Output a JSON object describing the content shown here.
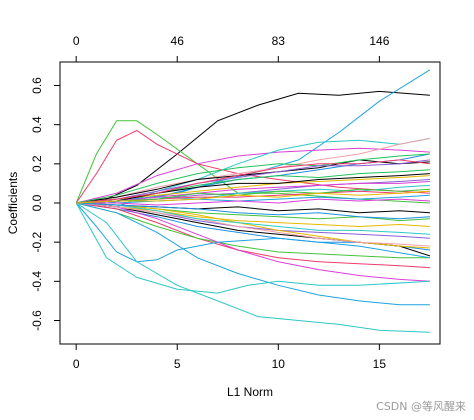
{
  "chart_data": {
    "type": "line",
    "xlabel": "L1 Norm",
    "ylabel": "Coefficients",
    "xlim": [
      -0.8,
      18.0
    ],
    "ylim": [
      -0.72,
      0.72
    ],
    "x_ticks": [
      0,
      5,
      10,
      15
    ],
    "y_ticks": [
      -0.6,
      -0.4,
      -0.2,
      0.0,
      0.2,
      0.4,
      0.6
    ],
    "y_tick_labels": [
      "-0.6",
      "-0.4",
      "-0.2",
      "0.0",
      "0.2",
      "0.4",
      "0.6"
    ],
    "top_axis": {
      "positions": [
        0,
        5,
        10,
        15
      ],
      "labels": [
        "0",
        "46",
        "83",
        "146"
      ]
    },
    "grid": false,
    "series": [
      {
        "color": "#000000",
        "x": [
          0,
          1.5,
          3,
          5,
          7,
          9,
          11,
          13,
          15,
          17.5
        ],
        "y": [
          0,
          0.02,
          0.09,
          0.25,
          0.42,
          0.5,
          0.56,
          0.55,
          0.57,
          0.55
        ]
      },
      {
        "color": "#1fa3e0",
        "x": [
          0,
          1.5,
          3,
          5,
          7,
          9,
          11,
          13,
          15,
          17.5
        ],
        "y": [
          0,
          0,
          0.02,
          0.05,
          0.11,
          0.16,
          0.22,
          0.36,
          0.52,
          0.68
        ]
      },
      {
        "color": "#44c23b",
        "x": [
          0,
          1,
          2,
          3,
          4,
          6,
          8,
          10,
          14,
          17.5
        ],
        "y": [
          0,
          0.25,
          0.42,
          0.42,
          0.35,
          0.2,
          0.05,
          0.05,
          0.02,
          0.0
        ]
      },
      {
        "color": "#ef3b6b",
        "x": [
          0,
          1,
          2,
          3,
          4,
          6,
          8,
          10,
          13,
          17.5
        ],
        "y": [
          0,
          0.15,
          0.32,
          0.37,
          0.3,
          0.2,
          0.15,
          0.12,
          0.08,
          0.05
        ]
      },
      {
        "color": "#d93fd6",
        "x": [
          0,
          2,
          4,
          6,
          8,
          10,
          12,
          14,
          16,
          17.5
        ],
        "y": [
          0,
          0.05,
          0.14,
          0.2,
          0.24,
          0.26,
          0.27,
          0.28,
          0.27,
          0.26
        ]
      },
      {
        "color": "#2ec7c7",
        "x": [
          0,
          2,
          4,
          6,
          8,
          10,
          12,
          14,
          16,
          17.5
        ],
        "y": [
          0,
          -0.02,
          0.06,
          0.12,
          0.2,
          0.27,
          0.31,
          0.32,
          0.3,
          0.33
        ]
      },
      {
        "color": "#1f8fe0",
        "x": [
          0,
          2,
          4,
          6,
          8,
          10,
          12,
          14,
          16,
          17.5
        ],
        "y": [
          0,
          0.02,
          0.03,
          0.08,
          0.12,
          0.14,
          0.17,
          0.2,
          0.22,
          0.25
        ]
      },
      {
        "color": "#f0a1a8",
        "x": [
          0,
          2,
          4,
          6,
          8,
          10,
          12,
          14,
          16,
          17.5
        ],
        "y": [
          0,
          0.03,
          0.08,
          0.12,
          0.15,
          0.18,
          0.22,
          0.25,
          0.3,
          0.33
        ]
      },
      {
        "color": "#000000",
        "x": [
          0,
          2,
          4,
          6,
          8,
          10,
          12,
          14,
          16,
          17.5
        ],
        "y": [
          0,
          0.03,
          0.07,
          0.12,
          0.14,
          0.16,
          0.18,
          0.22,
          0.2,
          0.21
        ]
      },
      {
        "color": "#22c25a",
        "x": [
          0,
          2,
          4,
          6,
          8,
          10,
          12,
          14,
          16,
          17.5
        ],
        "y": [
          0,
          0.02,
          0.05,
          0.09,
          0.12,
          0.14,
          0.13,
          0.15,
          0.16,
          0.17
        ]
      },
      {
        "color": "#e5b800",
        "x": [
          0,
          2,
          4,
          6,
          8,
          10,
          12,
          14,
          16,
          17.5
        ],
        "y": [
          0,
          0.02,
          0.04,
          0.06,
          0.08,
          0.1,
          0.11,
          0.12,
          0.13,
          0.14
        ]
      },
      {
        "color": "#8a5fd6",
        "x": [
          0,
          2,
          4,
          6,
          8,
          10,
          12,
          14,
          16,
          17.5
        ],
        "y": [
          0,
          0.01,
          0.02,
          0.04,
          0.05,
          0.07,
          0.09,
          0.1,
          0.11,
          0.12
        ]
      },
      {
        "color": "#2ec7c7",
        "x": [
          0,
          2,
          4,
          6,
          8,
          10,
          12,
          14,
          16,
          17.5
        ],
        "y": [
          0,
          0.01,
          0.03,
          0.02,
          0.05,
          0.06,
          0.07,
          0.06,
          0.08,
          0.09
        ]
      },
      {
        "color": "#ef3b6b",
        "x": [
          0,
          2,
          4,
          6,
          8,
          10,
          12,
          14,
          16,
          17.5
        ],
        "y": [
          0,
          0.01,
          0.02,
          0.03,
          0.03,
          0.04,
          0.05,
          0.06,
          0.05,
          0.06
        ]
      },
      {
        "color": "#1fa3e0",
        "x": [
          0,
          2,
          4,
          6,
          8,
          10,
          12,
          14,
          16,
          17.5
        ],
        "y": [
          0,
          0.0,
          0.01,
          0.02,
          0.01,
          0.02,
          0.03,
          0.02,
          0.03,
          0.04
        ]
      },
      {
        "color": "#d93fd6",
        "x": [
          0,
          2,
          4,
          6,
          8,
          10,
          12,
          14,
          16,
          17.5
        ],
        "y": [
          0,
          0.0,
          -0.01,
          0.0,
          0.01,
          0.0,
          0.02,
          0.01,
          0.02,
          0.01
        ]
      },
      {
        "color": "#000000",
        "x": [
          0,
          2,
          4,
          6,
          8,
          10,
          12,
          14,
          16,
          17.5
        ],
        "y": [
          0,
          -0.01,
          -0.02,
          -0.03,
          -0.02,
          -0.04,
          -0.03,
          -0.05,
          -0.04,
          -0.05
        ]
      },
      {
        "color": "#44c23b",
        "x": [
          0,
          2,
          4,
          6,
          8,
          10,
          12,
          14,
          16,
          17.5
        ],
        "y": [
          0,
          -0.01,
          -0.03,
          -0.05,
          -0.06,
          -0.07,
          -0.08,
          -0.07,
          -0.09,
          -0.08
        ]
      },
      {
        "color": "#e5b800",
        "x": [
          0,
          2,
          4,
          6,
          8,
          10,
          12,
          14,
          16,
          17.5
        ],
        "y": [
          0,
          -0.02,
          -0.04,
          -0.07,
          -0.09,
          -0.1,
          -0.11,
          -0.12,
          -0.11,
          -0.12
        ]
      },
      {
        "color": "#8a5fd6",
        "x": [
          0,
          2,
          4,
          6,
          8,
          10,
          12,
          14,
          16,
          17.5
        ],
        "y": [
          0,
          -0.02,
          -0.05,
          -0.09,
          -0.12,
          -0.14,
          -0.15,
          -0.16,
          -0.17,
          -0.18
        ]
      },
      {
        "color": "#1f8fe0",
        "x": [
          0,
          2,
          4,
          6,
          8,
          10,
          12,
          14,
          16,
          17.5
        ],
        "y": [
          0,
          -0.03,
          -0.07,
          -0.12,
          -0.15,
          -0.18,
          -0.2,
          -0.2,
          -0.22,
          -0.24
        ]
      },
      {
        "color": "#000000",
        "x": [
          0,
          2,
          4,
          6,
          8,
          10,
          12,
          14,
          16,
          17.5
        ],
        "y": [
          0,
          -0.02,
          -0.06,
          -0.1,
          -0.14,
          -0.16,
          -0.18,
          -0.2,
          -0.22,
          -0.27
        ]
      },
      {
        "color": "#ef3b6b",
        "x": [
          0,
          2,
          4,
          6,
          8,
          10,
          12,
          14,
          16,
          17.5
        ],
        "y": [
          0,
          -0.03,
          -0.1,
          -0.18,
          -0.24,
          -0.28,
          -0.3,
          -0.31,
          -0.32,
          -0.33
        ]
      },
      {
        "color": "#44c23b",
        "x": [
          0,
          2,
          4,
          6,
          8,
          10,
          12,
          14,
          16,
          17.5
        ],
        "y": [
          0,
          -0.05,
          -0.12,
          -0.18,
          -0.22,
          -0.25,
          -0.26,
          -0.27,
          -0.28,
          -0.28
        ]
      },
      {
        "color": "#d93fd6",
        "x": [
          0,
          2,
          4,
          6,
          8,
          10,
          12,
          14,
          16,
          17.5
        ],
        "y": [
          0,
          -0.02,
          -0.08,
          -0.16,
          -0.24,
          -0.3,
          -0.34,
          -0.37,
          -0.39,
          -0.4
        ]
      },
      {
        "color": "#1fa3e0",
        "x": [
          0,
          1,
          2,
          3,
          4,
          5,
          7,
          10,
          14,
          17.5
        ],
        "y": [
          0,
          -0.12,
          -0.25,
          -0.3,
          -0.29,
          -0.24,
          -0.2,
          -0.18,
          -0.22,
          -0.28
        ]
      },
      {
        "color": "#1fa3e0",
        "x": [
          0,
          2,
          4,
          6,
          8,
          10,
          12,
          14,
          16,
          17.5
        ],
        "y": [
          0,
          -0.05,
          -0.15,
          -0.28,
          -0.36,
          -0.42,
          -0.47,
          -0.5,
          -0.52,
          -0.52
        ]
      },
      {
        "color": "#2ec7c7",
        "x": [
          0,
          1.5,
          3,
          5,
          7,
          8.5,
          10,
          12,
          14,
          17.5
        ],
        "y": [
          0,
          -0.28,
          -0.38,
          -0.44,
          -0.46,
          -0.42,
          -0.4,
          -0.42,
          -0.42,
          -0.4
        ]
      },
      {
        "color": "#2ec7c7",
        "x": [
          0,
          1.5,
          3,
          5,
          7,
          9,
          11,
          13,
          15,
          17.5
        ],
        "y": [
          0,
          -0.1,
          -0.3,
          -0.42,
          -0.5,
          -0.58,
          -0.6,
          -0.62,
          -0.65,
          -0.66
        ]
      },
      {
        "color": "#e5b800",
        "x": [
          0,
          2,
          4,
          6,
          8,
          10,
          12,
          14,
          16,
          17.5
        ],
        "y": [
          0,
          -0.01,
          -0.03,
          -0.06,
          -0.1,
          -0.14,
          -0.17,
          -0.2,
          -0.22,
          -0.23
        ]
      },
      {
        "color": "#22c25a",
        "x": [
          0,
          2,
          4,
          6,
          8,
          10,
          12,
          14,
          16,
          17.5
        ],
        "y": [
          0,
          0.04,
          0.1,
          0.15,
          0.18,
          0.2,
          0.19,
          0.22,
          0.24,
          0.25
        ]
      },
      {
        "color": "#8a5fd6",
        "x": [
          0,
          2,
          4,
          6,
          8,
          10,
          12,
          14,
          16,
          17.5
        ],
        "y": [
          0,
          0.02,
          0.06,
          0.1,
          0.13,
          0.16,
          0.19,
          0.19,
          0.2,
          0.22
        ]
      },
      {
        "color": "#f0a1a8",
        "x": [
          0,
          2,
          4,
          6,
          8,
          10,
          12,
          14,
          16,
          17.5
        ],
        "y": [
          0,
          -0.02,
          -0.05,
          -0.08,
          -0.12,
          -0.15,
          -0.18,
          -0.2,
          -0.21,
          -0.22
        ]
      },
      {
        "color": "#000000",
        "x": [
          0,
          2,
          4,
          6,
          8,
          10,
          12,
          14,
          16,
          17.5
        ],
        "y": [
          0,
          0.01,
          0.05,
          0.08,
          0.1,
          0.1,
          0.12,
          0.13,
          0.14,
          0.15
        ]
      },
      {
        "color": "#ef3b6b",
        "x": [
          0,
          2,
          4,
          6,
          8,
          10,
          12,
          14,
          16,
          17.5
        ],
        "y": [
          0,
          0.02,
          0.05,
          0.1,
          0.14,
          0.18,
          0.2,
          0.2,
          0.22,
          0.2
        ]
      },
      {
        "color": "#2ec7c7",
        "x": [
          0,
          2,
          4,
          6,
          8,
          10,
          12,
          14,
          16,
          17.5
        ],
        "y": [
          0,
          -0.01,
          -0.04,
          -0.08,
          -0.1,
          -0.12,
          -0.14,
          -0.14,
          -0.15,
          -0.16
        ]
      },
      {
        "color": "#d93fd6",
        "x": [
          0,
          2,
          4,
          6,
          8,
          10,
          12,
          14,
          16,
          17.5
        ],
        "y": [
          0,
          0.01,
          0.03,
          0.05,
          0.07,
          0.08,
          0.09,
          0.1,
          0.1,
          0.11
        ]
      },
      {
        "color": "#44c23b",
        "x": [
          0,
          2,
          4,
          6,
          8,
          10,
          12,
          14,
          16,
          17.5
        ],
        "y": [
          0,
          0.01,
          0.02,
          0.05,
          0.04,
          0.06,
          0.05,
          0.07,
          0.06,
          0.07
        ]
      },
      {
        "color": "#1f8fe0",
        "x": [
          0,
          2,
          4,
          6,
          8,
          10,
          12,
          14,
          16,
          17.5
        ],
        "y": [
          0,
          -0.01,
          -0.02,
          -0.03,
          -0.05,
          -0.06,
          -0.05,
          -0.07,
          -0.08,
          -0.07
        ]
      },
      {
        "color": "#e5b800",
        "x": [
          0,
          2,
          4,
          6,
          8,
          10,
          12,
          14,
          16,
          17.5
        ],
        "y": [
          0,
          0.01,
          0.01,
          0.02,
          0.04,
          0.03,
          0.05,
          0.04,
          0.05,
          0.06
        ]
      }
    ]
  },
  "watermark": "CSDN @等风醒来"
}
